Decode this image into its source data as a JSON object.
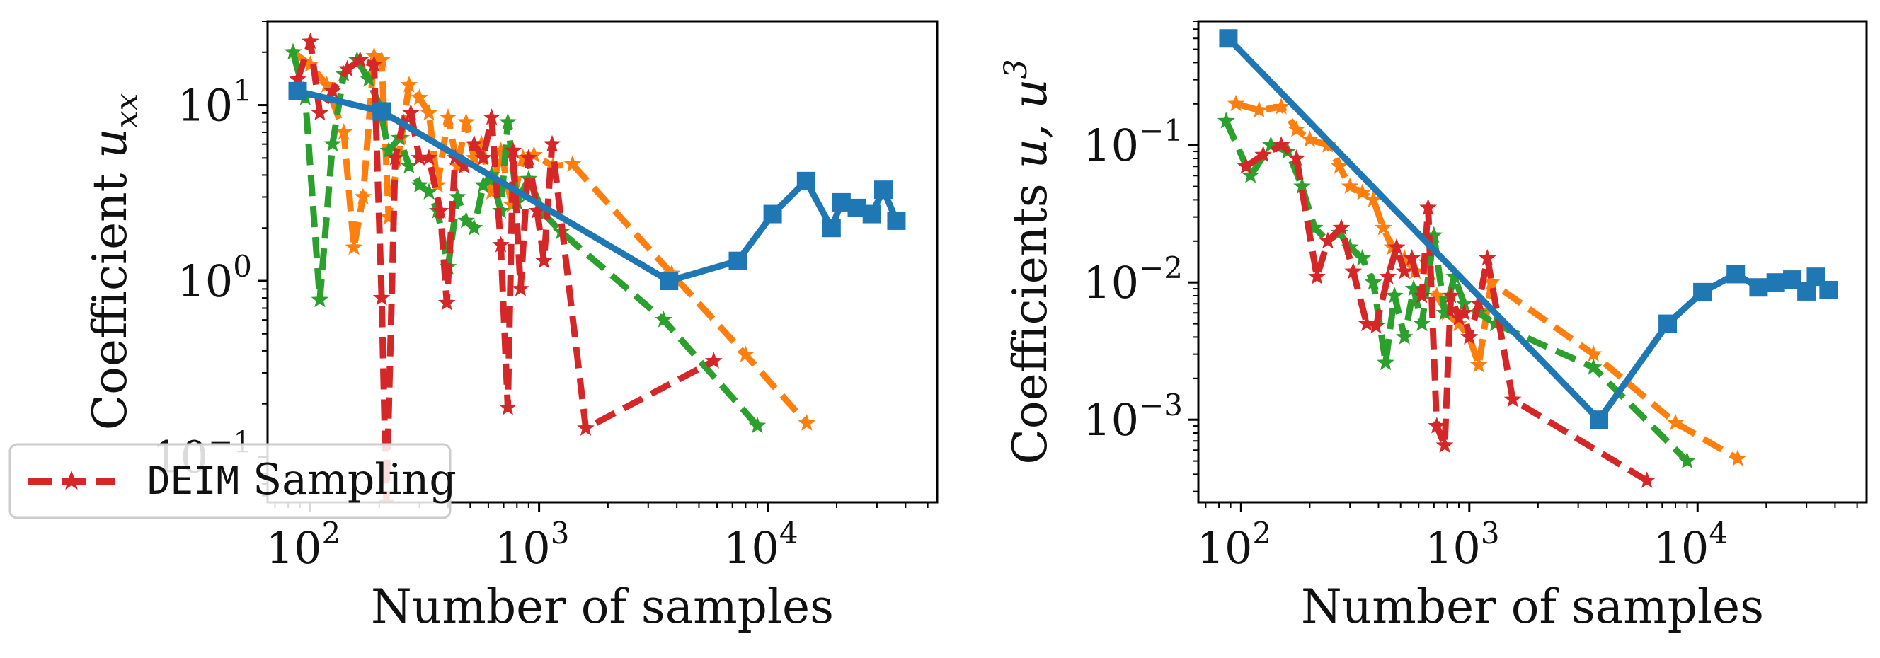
{
  "chart_data": [
    {
      "type": "line",
      "xlabel": "Number of samples",
      "ylabel": "Coefficient u_xx",
      "ylabel_main": "Coefficient ",
      "ylabel_var": "u",
      "ylabel_sub": "xx",
      "xscale": "log",
      "yscale": "log",
      "xlim": [
        65,
        55000
      ],
      "ylim": [
        0.055,
        30
      ],
      "x_ticks": [
        {
          "base": "10",
          "exp": "2",
          "value": 100
        },
        {
          "base": "10",
          "exp": "3",
          "value": 1000
        },
        {
          "base": "10",
          "exp": "4",
          "value": 10000
        }
      ],
      "y_ticks": [
        {
          "base": "10",
          "exp": "1",
          "value": 10
        },
        {
          "base": "10",
          "exp": "0",
          "value": 1
        },
        {
          "base": "10",
          "exp": "−1",
          "value": 0.1
        }
      ],
      "legend": {
        "placement": "lower-left",
        "label_mono": "DEIM",
        "label_text": " Sampling",
        "color": "#d62728"
      },
      "series": [
        {
          "color": "#1f77b4",
          "style": "solid",
          "marker": "square",
          "points": [
            [
              88,
              12
            ],
            [
              205,
              9.2
            ],
            [
              3700,
              1.0
            ],
            [
              7400,
              1.3
            ],
            [
              10500,
              2.4
            ],
            [
              14700,
              3.7
            ],
            [
              19000,
              2.0
            ],
            [
              21000,
              2.8
            ],
            [
              24500,
              2.6
            ],
            [
              28500,
              2.4
            ],
            [
              32000,
              3.3
            ],
            [
              36500,
              2.2
            ]
          ]
        },
        {
          "color": "#ff7f0e",
          "style": "dashed",
          "marker": "star",
          "points": [
            [
              84,
              20
            ],
            [
              100,
              17
            ],
            [
              118,
              13
            ],
            [
              140,
              7
            ],
            [
              155,
              1.55
            ],
            [
              170,
              3
            ],
            [
              190,
              19
            ],
            [
              205,
              18
            ],
            [
              220,
              2.3
            ],
            [
              250,
              6.5
            ],
            [
              270,
              13
            ],
            [
              300,
              11
            ],
            [
              330,
              9
            ],
            [
              360,
              3.5
            ],
            [
              400,
              8.5
            ],
            [
              440,
              4.5
            ],
            [
              480,
              8
            ],
            [
              520,
              5
            ],
            [
              560,
              6
            ],
            [
              620,
              3.2
            ],
            [
              680,
              5.5
            ],
            [
              760,
              2.7
            ],
            [
              850,
              5
            ],
            [
              950,
              5.2
            ],
            [
              1150,
              4.5
            ],
            [
              1400,
              4.6
            ],
            [
              3800,
              1.1
            ],
            [
              8000,
              0.38
            ],
            [
              14800,
              0.155
            ]
          ]
        },
        {
          "color": "#2ca02c",
          "style": "dashed",
          "marker": "star",
          "points": [
            [
              84,
              20
            ],
            [
              95,
              11
            ],
            [
              110,
              0.78
            ],
            [
              125,
              6
            ],
            [
              140,
              15
            ],
            [
              160,
              18
            ],
            [
              180,
              14
            ],
            [
              200,
              10
            ],
            [
              220,
              5.5
            ],
            [
              245,
              6.5
            ],
            [
              270,
              4.5
            ],
            [
              300,
              3.5
            ],
            [
              330,
              3.2
            ],
            [
              360,
              2.5
            ],
            [
              400,
              1.2
            ],
            [
              440,
              3
            ],
            [
              480,
              2.2
            ],
            [
              520,
              2
            ],
            [
              570,
              3.5
            ],
            [
              620,
              4
            ],
            [
              680,
              2.5
            ],
            [
              730,
              8
            ],
            [
              800,
              2.8
            ],
            [
              900,
              3.8
            ],
            [
              1050,
              2.4
            ],
            [
              1250,
              1.9
            ],
            [
              3500,
              0.6
            ],
            [
              9000,
              0.15
            ]
          ]
        },
        {
          "color": "#d62728",
          "style": "dashed",
          "marker": "star",
          "points": [
            [
              88,
              14
            ],
            [
              100,
              23
            ],
            [
              110,
              9
            ],
            [
              125,
              12
            ],
            [
              145,
              16
            ],
            [
              165,
              18
            ],
            [
              190,
              17
            ],
            [
              205,
              0.8
            ],
            [
              215,
              0.055
            ],
            [
              235,
              5
            ],
            [
              255,
              8
            ],
            [
              275,
              9
            ],
            [
              300,
              5
            ],
            [
              330,
              5
            ],
            [
              370,
              2.5
            ],
            [
              395,
              0.75
            ],
            [
              430,
              5
            ],
            [
              470,
              4.5
            ],
            [
              520,
              6
            ],
            [
              570,
              5
            ],
            [
              620,
              8.5
            ],
            [
              680,
              1.6
            ],
            [
              730,
              0.19
            ],
            [
              770,
              5.5
            ],
            [
              830,
              0.9
            ],
            [
              900,
              5
            ],
            [
              980,
              2.5
            ],
            [
              1050,
              1.3
            ],
            [
              1140,
              6
            ],
            [
              1600,
              0.145
            ],
            [
              5800,
              0.35
            ]
          ]
        }
      ]
    },
    {
      "type": "line",
      "xlabel": "Number of samples",
      "ylabel": "Coefficients u, u^3",
      "ylabel_main": "Coefficients ",
      "ylabel_var": "u, u",
      "ylabel_sup": "3",
      "xscale": "log",
      "yscale": "log",
      "xlim": [
        65,
        55000
      ],
      "ylim": [
        0.00025,
        0.8
      ],
      "x_ticks": [
        {
          "base": "10",
          "exp": "2",
          "value": 100
        },
        {
          "base": "10",
          "exp": "3",
          "value": 1000
        },
        {
          "base": "10",
          "exp": "4",
          "value": 10000
        }
      ],
      "y_ticks": [
        {
          "base": "10",
          "exp": "−1",
          "value": 0.1
        },
        {
          "base": "10",
          "exp": "−2",
          "value": 0.01
        },
        {
          "base": "10",
          "exp": "−3",
          "value": 0.001
        }
      ],
      "series": [
        {
          "color": "#1f77b4",
          "style": "solid",
          "marker": "square",
          "points": [
            [
              88,
              0.6
            ],
            [
              3700,
              0.001
            ],
            [
              7400,
              0.005
            ],
            [
              10500,
              0.0085
            ],
            [
              14700,
              0.0115
            ],
            [
              18500,
              0.0092
            ],
            [
              22000,
              0.01
            ],
            [
              26000,
              0.0105
            ],
            [
              30000,
              0.0086
            ],
            [
              33000,
              0.011
            ],
            [
              37500,
              0.0088
            ]
          ]
        },
        {
          "color": "#ff7f0e",
          "style": "dashed",
          "marker": "star",
          "points": [
            [
              95,
              0.2
            ],
            [
              120,
              0.18
            ],
            [
              150,
              0.19
            ],
            [
              175,
              0.13
            ],
            [
              200,
              0.11
            ],
            [
              240,
              0.1
            ],
            [
              270,
              0.07
            ],
            [
              300,
              0.05
            ],
            [
              340,
              0.045
            ],
            [
              380,
              0.04
            ],
            [
              420,
              0.025
            ],
            [
              460,
              0.018
            ],
            [
              520,
              0.015
            ],
            [
              580,
              0.012
            ],
            [
              650,
              0.014
            ],
            [
              720,
              0.008
            ],
            [
              800,
              0.006
            ],
            [
              900,
              0.005
            ],
            [
              1000,
              0.004
            ],
            [
              1100,
              0.0025
            ],
            [
              1250,
              0.01
            ],
            [
              3500,
              0.003
            ],
            [
              8000,
              0.00095
            ],
            [
              15000,
              0.00052
            ]
          ]
        },
        {
          "color": "#2ca02c",
          "style": "dashed",
          "marker": "star",
          "points": [
            [
              86,
              0.15
            ],
            [
              110,
              0.06
            ],
            [
              135,
              0.1
            ],
            [
              160,
              0.09
            ],
            [
              185,
              0.05
            ],
            [
              210,
              0.025
            ],
            [
              240,
              0.02
            ],
            [
              270,
              0.023
            ],
            [
              300,
              0.018
            ],
            [
              340,
              0.015
            ],
            [
              380,
              0.01
            ],
            [
              430,
              0.0026
            ],
            [
              470,
              0.008
            ],
            [
              520,
              0.004
            ],
            [
              570,
              0.009
            ],
            [
              620,
              0.005
            ],
            [
              700,
              0.022
            ],
            [
              780,
              0.006
            ],
            [
              860,
              0.011
            ],
            [
              950,
              0.007
            ],
            [
              1100,
              0.006
            ],
            [
              1300,
              0.005
            ],
            [
              3500,
              0.0024
            ],
            [
              9000,
              0.0005
            ]
          ]
        },
        {
          "color": "#d62728",
          "style": "dashed",
          "marker": "star",
          "points": [
            [
              105,
              0.07
            ],
            [
              125,
              0.085
            ],
            [
              150,
              0.1
            ],
            [
              175,
              0.08
            ],
            [
              215,
              0.011
            ],
            [
              240,
              0.02
            ],
            [
              275,
              0.025
            ],
            [
              310,
              0.012
            ],
            [
              355,
              0.005
            ],
            [
              390,
              0.0048
            ],
            [
              440,
              0.011
            ],
            [
              480,
              0.018
            ],
            [
              520,
              0.012
            ],
            [
              560,
              0.015
            ],
            [
              620,
              0.008
            ],
            [
              660,
              0.035
            ],
            [
              720,
              0.0009
            ],
            [
              780,
              0.00065
            ],
            [
              830,
              0.008
            ],
            [
              900,
              0.0055
            ],
            [
              950,
              0.006
            ],
            [
              1000,
              0.004
            ],
            [
              1100,
              0.007
            ],
            [
              1200,
              0.015
            ],
            [
              1550,
              0.0014
            ],
            [
              6000,
              0.00036
            ]
          ]
        }
      ]
    }
  ]
}
